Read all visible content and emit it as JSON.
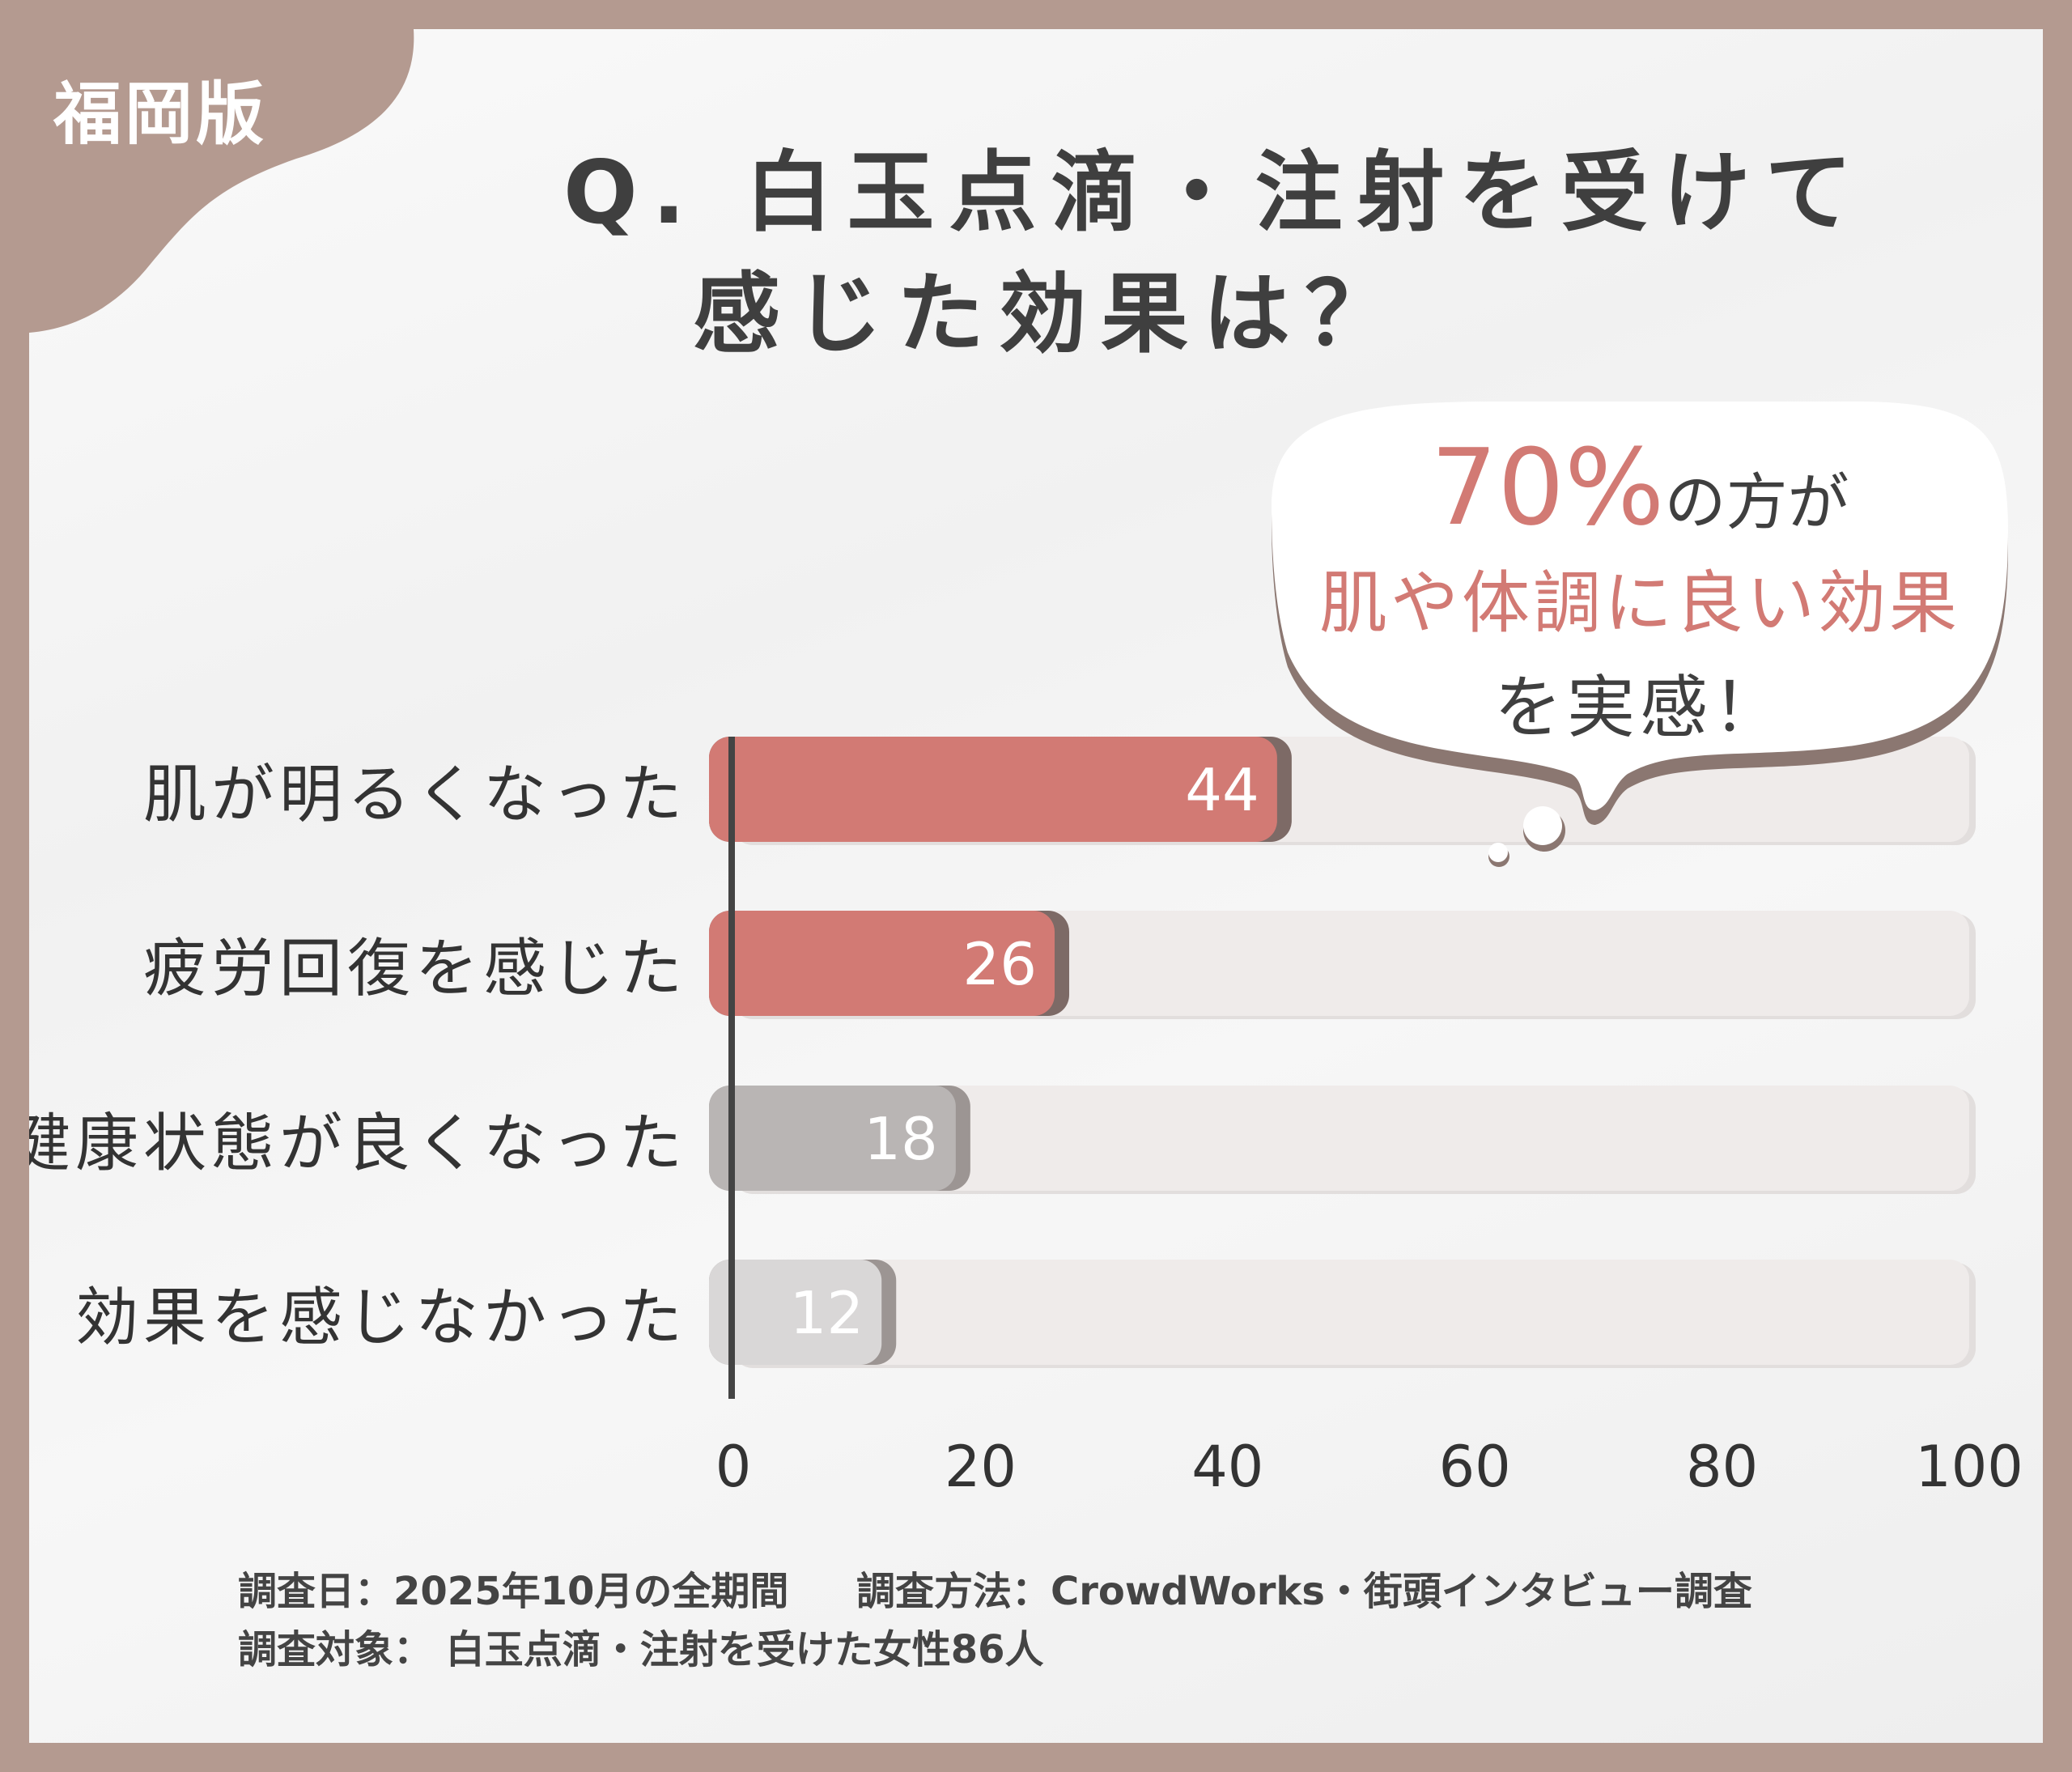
{
  "badge": "福岡版",
  "title": {
    "line1": "Q. 白玉点滴・注射を受けて",
    "line2": "感じた効果は？"
  },
  "callout": {
    "percent": "70%",
    "line1_rest": "の方が",
    "line2": "肌や体調に良い効果",
    "line3": "を実感！"
  },
  "colors": {
    "frame": "#b49a90",
    "accent": "#d27a74",
    "gray": "#b9b5b4",
    "light_gray": "#d9d7d7",
    "track": "#efebea",
    "shadow": "#7d6a66"
  },
  "chart_data": {
    "type": "bar",
    "orientation": "horizontal",
    "categories": [
      "肌が明るくなった",
      "疲労回復を感じた",
      "健康状態が良くなった",
      "効果を感じなかった"
    ],
    "values": [
      44,
      26,
      18,
      12
    ],
    "xlim": [
      0,
      100
    ],
    "xticks": [
      "0",
      "20",
      "40",
      "60",
      "80",
      "100"
    ],
    "grid": false
  },
  "footer": {
    "date": "調査日：2025年10月の全期間",
    "method": "調査方法：CrowdWorks・街頭インタビュー調査",
    "target": "調査対象： 白玉点滴・注射を受けた女性86人"
  }
}
